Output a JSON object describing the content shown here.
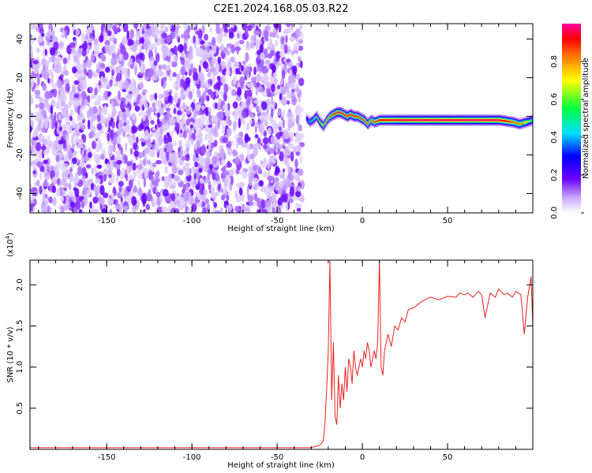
{
  "figure": {
    "title": "C2E1.2024.168.05.03.R22"
  },
  "chart_data": [
    {
      "type": "heatmap",
      "xlabel": "Height of straight line (km)",
      "ylabel": "Frequency (Hz)",
      "xlim": [
        -195,
        100
      ],
      "ylim": [
        -50,
        48
      ],
      "x_ticks": [
        -150,
        -100,
        -50,
        0,
        50
      ],
      "y_ticks": [
        -40,
        -20,
        0,
        20,
        40
      ],
      "noise_region_x": [
        -195,
        -35
      ],
      "signal_track": {
        "x": [
          -33,
          -31,
          -29,
          -27,
          -25,
          -23,
          -21,
          -19,
          -17,
          -15,
          -13,
          -11,
          -9,
          -7,
          -5,
          -3,
          -1,
          1,
          3,
          5,
          7,
          10,
          20,
          30,
          40,
          50,
          60,
          70,
          80,
          88,
          92,
          96,
          100
        ],
        "freq": [
          -1,
          -3,
          -2,
          0,
          -3,
          -5,
          -2,
          0,
          1,
          2,
          2,
          1,
          0,
          1,
          0,
          0,
          -1,
          -2,
          -4,
          -2,
          -3,
          -2,
          -2,
          -2,
          -2,
          -2,
          -2,
          -2,
          -2,
          -3,
          -4,
          -3,
          -2
        ],
        "amplitude": [
          0.3,
          0.45,
          0.55,
          0.6,
          0.65,
          0.75,
          0.8,
          0.85,
          0.9,
          0.95,
          0.97,
          0.9,
          0.92,
          0.95,
          0.93,
          0.9,
          0.88,
          0.9,
          0.85,
          0.8,
          0.85,
          0.92,
          0.96,
          0.97,
          0.97,
          0.97,
          0.97,
          0.97,
          0.96,
          0.85,
          0.8,
          0.7,
          0.5
        ]
      },
      "colorbar": {
        "label": "Normalized spectral amplitude",
        "range": [
          0,
          1
        ],
        "ticks": [
          0.0,
          0.2,
          0.4,
          0.6,
          0.8
        ]
      }
    },
    {
      "type": "line",
      "xlabel": "Height of straight line (km)",
      "ylabel": "SNR (10 * v/v)",
      "scale_label": "(x10",
      "scale_exp": "4",
      "scale_close": ")",
      "xlim": [
        -195,
        100
      ],
      "ylim": [
        0,
        2.3
      ],
      "x_ticks": [
        -150,
        -100,
        -50,
        0,
        50
      ],
      "y_ticks": [
        0.5,
        1.0,
        1.5,
        2.0
      ],
      "series": [
        {
          "color": "#e8221e",
          "x": [
            -195,
            -150,
            -100,
            -50,
            -30,
            -25,
            -23,
            -22,
            -21,
            -20,
            -19,
            -18,
            -17,
            -16,
            -15,
            -14,
            -13,
            -12,
            -11,
            -10,
            -9,
            -8,
            -7,
            -6,
            -5,
            -4,
            -3,
            -2,
            -1,
            0,
            1,
            2,
            3,
            4,
            5,
            6,
            7,
            8,
            9,
            10,
            11,
            12,
            13,
            14,
            15,
            17,
            19,
            21,
            23,
            25,
            27,
            30,
            35,
            40,
            45,
            50,
            55,
            57,
            60,
            62,
            65,
            68,
            70,
            72,
            75,
            78,
            80,
            83,
            85,
            88,
            90,
            93,
            95,
            97,
            99,
            100
          ],
          "y": [
            0.02,
            0.02,
            0.02,
            0.02,
            0.02,
            0.05,
            0.1,
            0.3,
            0.7,
            1.2,
            2.3,
            0.6,
            1.3,
            0.4,
            0.3,
            0.9,
            0.5,
            0.8,
            0.6,
            1.0,
            0.7,
            1.1,
            1.0,
            0.8,
            1.2,
            1.0,
            0.9,
            1.0,
            1.1,
            1.0,
            1.2,
            1.1,
            1.3,
            1.2,
            1.0,
            1.1,
            1.2,
            1.1,
            1.3,
            2.3,
            1.0,
            0.9,
            1.2,
            1.3,
            1.4,
            1.25,
            1.5,
            1.45,
            1.6,
            1.55,
            1.7,
            1.72,
            1.8,
            1.85,
            1.82,
            1.86,
            1.85,
            1.9,
            1.88,
            1.9,
            1.85,
            1.92,
            1.88,
            1.6,
            1.9,
            1.85,
            1.95,
            1.88,
            1.9,
            1.85,
            1.92,
            1.88,
            1.4,
            1.85,
            2.1,
            1.5
          ]
        }
      ]
    }
  ]
}
